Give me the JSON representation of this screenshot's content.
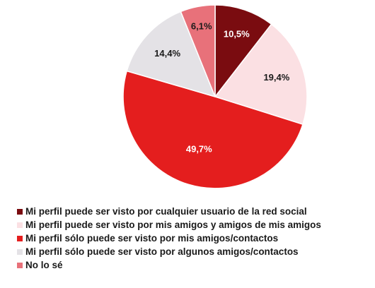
{
  "chart_data": {
    "type": "pie",
    "title": "",
    "slices": [
      {
        "label": "Mi perfil puede ser visto por cualquier usuario de la red social",
        "value": 10.5,
        "value_label": "10,5%",
        "color": "#7a0c10",
        "label_color": "#ffffff"
      },
      {
        "label": "Mi perfil puede ser visto por mis amigos y amigos de mis amigos",
        "value": 19.4,
        "value_label": "19,4%",
        "color": "#fbe0e3",
        "label_color": "#1a1a1a"
      },
      {
        "label": "Mi perfil sólo puede ser visto por mis amigos/contactos",
        "value": 49.7,
        "value_label": "49,7%",
        "color": "#e41e1e",
        "label_color": "#ffffff"
      },
      {
        "label": "Mi perfil sólo puede ser visto por algunos amigos/contactos",
        "value": 14.4,
        "value_label": "14,4%",
        "color": "#e4e2e6",
        "label_color": "#1a1a1a"
      },
      {
        "label": "No lo sé",
        "value": 6.1,
        "value_label": "6,1%",
        "color": "#e8717a",
        "label_color": "#1a1a1a"
      }
    ],
    "start_angle": "12 o'clock",
    "direction": "clockwise",
    "legend_position": "bottom-left"
  }
}
